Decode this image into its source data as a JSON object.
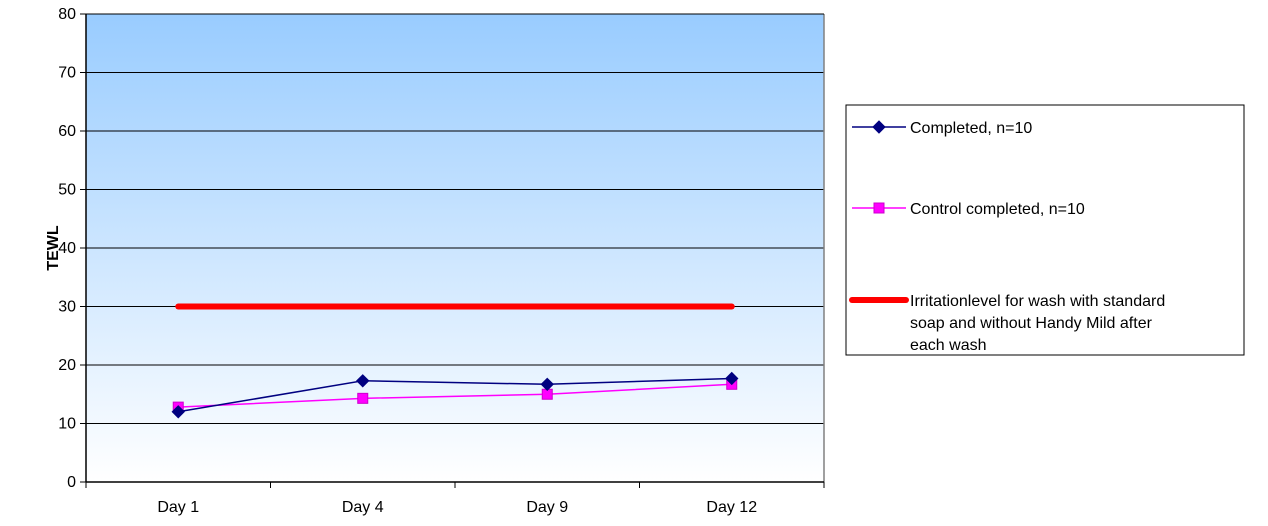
{
  "chart_data": {
    "type": "line",
    "title": "",
    "xlabel": "",
    "ylabel": "TEWL",
    "categories": [
      "Day 1",
      "Day 4",
      "Day 9",
      "Day 12"
    ],
    "ylim": [
      0,
      80
    ],
    "yticks": [
      0,
      10,
      20,
      30,
      40,
      50,
      60,
      70,
      80
    ],
    "grid": true,
    "legend_position": "right",
    "plot_background": {
      "top_color": "#99ccff",
      "bottom_color": "#ffffff"
    },
    "series": [
      {
        "name": "Completed, n=10",
        "values": [
          12,
          17.3,
          16.7,
          17.7
        ],
        "color": "#000080",
        "marker": "diamond"
      },
      {
        "name": "Control completed, n=10",
        "values": [
          12.8,
          14.3,
          15.0,
          16.7
        ],
        "color": "#ff00ff",
        "marker": "square"
      },
      {
        "name": "Irritationlevel for wash with standard soap and without Handy Mild after each wash",
        "values": [
          30,
          30,
          30,
          30
        ],
        "color": "#ff0000",
        "marker": "none"
      }
    ]
  },
  "legend": {
    "labels": [
      [
        "Completed, n=10"
      ],
      [
        "Control completed, n=10"
      ],
      [
        "Irritationlevel for wash with standard",
        "soap and without Handy Mild after",
        "each wash"
      ]
    ]
  }
}
